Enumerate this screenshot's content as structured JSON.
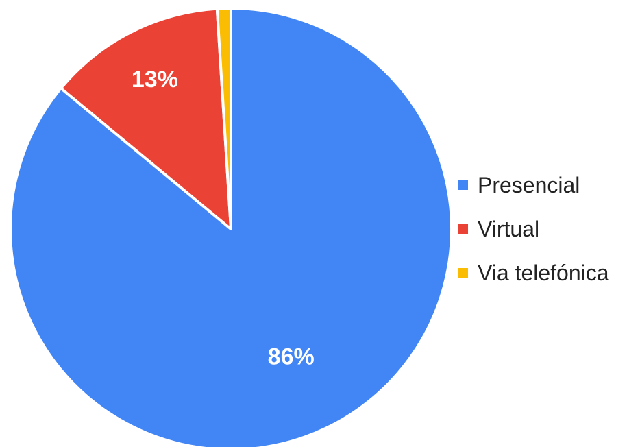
{
  "chart_data": {
    "type": "pie",
    "title": "",
    "categories": [
      "Presencial",
      "Virtual",
      "Via telefónica"
    ],
    "values": [
      86,
      13,
      1
    ],
    "unit": "%",
    "data_labels": [
      "86%",
      "13%",
      ""
    ],
    "colors": [
      "#4285f4",
      "#ea4335",
      "#fbbc04"
    ],
    "legend_position": "right",
    "start_angle": "12 o'clock",
    "direction": "clockwise"
  }
}
